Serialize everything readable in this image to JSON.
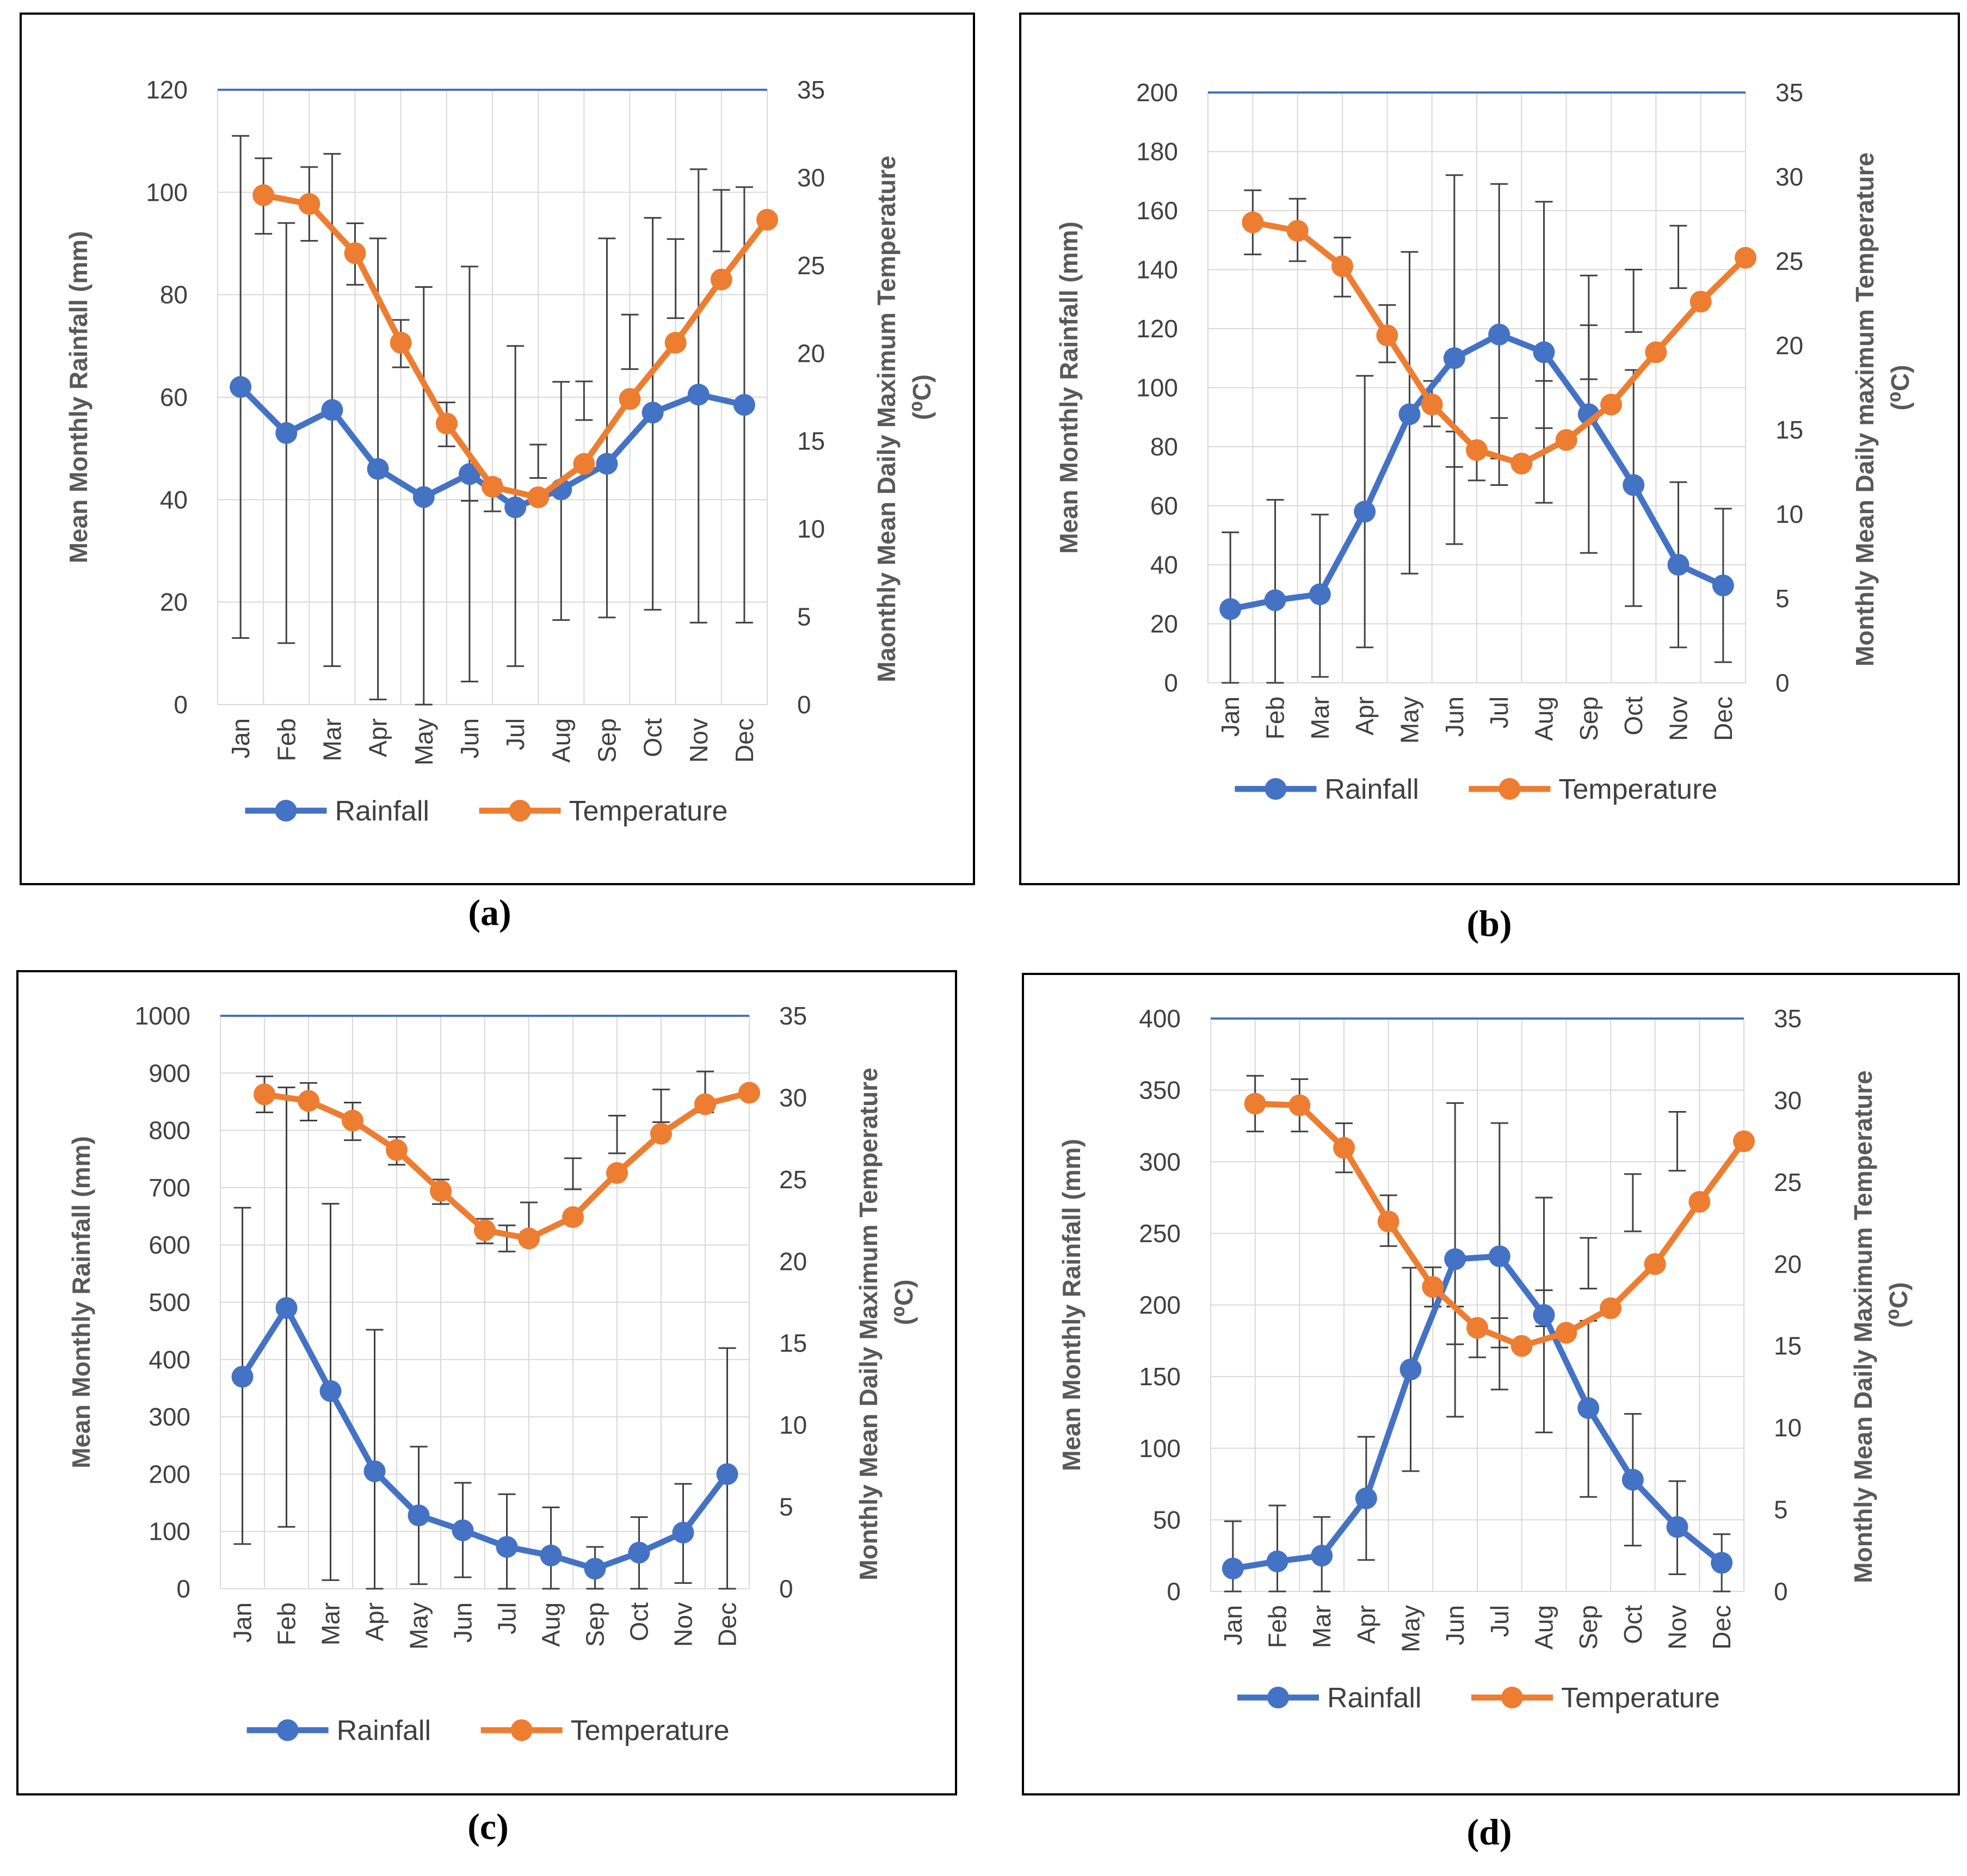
{
  "chart_data": [
    {
      "type": "line",
      "panel_label": "(a)",
      "months": [
        "Jan",
        "Feb",
        "Mar",
        "Apr",
        "May",
        "Jun",
        "Jul",
        "Aug",
        "Sep",
        "Oct",
        "Nov",
        "Dec"
      ],
      "ylabel": "Mean Monthly Rainfall (mm)",
      "y2label_line1": "Maonthly Mean Daily Maximum Temperature",
      "y2label_line2": "(⁰C)",
      "ylim": [
        0,
        120
      ],
      "yticks": [
        0,
        20,
        40,
        60,
        80,
        100,
        120
      ],
      "y2lim": [
        0,
        35
      ],
      "y2ticks": [
        0,
        5,
        10,
        15,
        20,
        25,
        30,
        35
      ],
      "rainfall": {
        "name": "Rainfall",
        "color": "#4472C4",
        "values": [
          62,
          53,
          57.5,
          46,
          40.5,
          45,
          38.5,
          42,
          47,
          57,
          60.5,
          58.5
        ],
        "err_low": [
          13,
          12,
          7.5,
          1,
          0,
          4.5,
          7.5,
          16.5,
          17,
          18.5,
          16,
          16
        ],
        "err_high": [
          111,
          94,
          107.5,
          91,
          81.5,
          85.5,
          70,
          63,
          91,
          95,
          104.5,
          101
        ]
      },
      "temperature": {
        "name": "Temperature",
        "color": "#ED7D31",
        "values": [
          29,
          28.5,
          25.7,
          20.6,
          16,
          12.4,
          11.8,
          13.7,
          17.4,
          20.6,
          24.2,
          27.6
        ],
        "err_low": [
          26.8,
          26.4,
          23.9,
          19.2,
          14.7,
          11.6,
          11,
          12.9,
          16.2,
          19.1,
          22,
          25.8
        ],
        "err_high": [
          31.1,
          30.6,
          27.4,
          21.9,
          17.2,
          13.3,
          12.8,
          14.8,
          18.4,
          22.2,
          26.5,
          29.3
        ],
        "error_bar_positions": [
          0,
          1,
          2,
          3,
          4,
          4.5,
          5,
          6,
          7,
          8,
          9,
          10
        ]
      },
      "legend": [
        "Rainfall",
        "Temperature"
      ]
    },
    {
      "type": "line",
      "panel_label": "(b)",
      "months": [
        "Jan",
        "Feb",
        "Mar",
        "Apr",
        "May",
        "Jun",
        "Jul",
        "Aug",
        "Sep",
        "Oct",
        "Nov",
        "Dec"
      ],
      "ylabel": "Mean Monthly Rainfall (mm)",
      "y2label_line1": "Monthly Mean Daily maximum Temperature",
      "y2label_line2": "(⁰C)",
      "ylim": [
        0,
        200
      ],
      "yticks": [
        0,
        20,
        40,
        60,
        80,
        100,
        120,
        140,
        160,
        180,
        200
      ],
      "y2lim": [
        0,
        35
      ],
      "y2ticks": [
        0,
        5,
        10,
        15,
        20,
        25,
        30,
        35
      ],
      "rainfall": {
        "name": "Rainfall",
        "color": "#4472C4",
        "values": [
          25,
          28,
          30,
          58,
          91,
          110,
          118,
          112,
          91,
          67,
          40,
          33
        ],
        "err_low": [
          0,
          0,
          2,
          12,
          37,
          47,
          67,
          61,
          44,
          26,
          12,
          7
        ],
        "err_high": [
          51,
          62,
          57,
          104,
          146,
          172,
          169,
          163,
          138,
          106,
          68,
          59
        ]
      },
      "temperature": {
        "name": "Temperature",
        "color": "#ED7D31",
        "values": [
          27.3,
          26.8,
          24.7,
          20.6,
          16.5,
          13.8,
          13,
          14.4,
          16.5,
          19.6,
          22.6,
          25.2
        ],
        "err_low": [
          25.4,
          25,
          22.9,
          19,
          15.2,
          12.8,
          12,
          13.3,
          15.1,
          18,
          20.8,
          23.4
        ],
        "err_high": [
          29.2,
          28.7,
          26.4,
          22.4,
          17.9,
          14.9,
          13.9,
          15.7,
          17.9,
          21.2,
          24.5,
          27.1
        ],
        "error_bar_positions": [
          0,
          1,
          2,
          3,
          4,
          4.5,
          5,
          5.5,
          6.5,
          7.5,
          8.5,
          9.5
        ]
      },
      "legend": [
        "Rainfall",
        "Temperature"
      ]
    },
    {
      "type": "line",
      "panel_label": "(c)",
      "months": [
        "Jan",
        "Feb",
        "Mar",
        "Apr",
        "May",
        "Jun",
        "Jul",
        "Aug",
        "Sep",
        "Oct",
        "Nov",
        "Dec"
      ],
      "ylabel": "Mean Monthly Rainfall (mm)",
      "y2label_line1": "Monthly Mean Daily Maximum Temperature",
      "y2label_line2": "(⁰C)",
      "ylim": [
        0,
        1000
      ],
      "yticks": [
        0,
        100,
        200,
        300,
        400,
        500,
        600,
        700,
        800,
        900,
        1000
      ],
      "y2lim": [
        0,
        35
      ],
      "y2ticks": [
        0,
        5,
        10,
        15,
        20,
        25,
        30,
        35
      ],
      "rainfall": {
        "name": "Rainfall",
        "color": "#4472C4",
        "values": [
          370,
          490,
          345,
          205,
          128,
          102,
          73,
          58,
          35,
          63,
          98,
          200
        ],
        "err_low": [
          78,
          108,
          15,
          0,
          8,
          20,
          0,
          0,
          0,
          0,
          10,
          0
        ],
        "err_high": [
          665,
          875,
          672,
          452,
          248,
          185,
          165,
          142,
          73,
          125,
          183,
          420
        ]
      },
      "temperature": {
        "name": "Temperature",
        "color": "#ED7D31",
        "values": [
          30.2,
          29.8,
          28.6,
          26.8,
          24.3,
          21.9,
          21.4,
          22.7,
          25.4,
          27.8,
          29.6,
          30.3
        ],
        "err_low": [
          29.1,
          28.6,
          27.4,
          25.9,
          23.5,
          21.1,
          20.6,
          21.8,
          24.4,
          26.6,
          28.5,
          29.1
        ],
        "err_high": [
          31.3,
          30.9,
          29.7,
          27.6,
          25,
          22.6,
          22.2,
          23.6,
          26.3,
          28.9,
          30.5,
          31.6
        ],
        "error_bar_positions": [
          0,
          1,
          2,
          3,
          4,
          5,
          5.5,
          6,
          7,
          8,
          9,
          10
        ]
      },
      "legend": [
        "Rainfall",
        "Temperature"
      ]
    },
    {
      "type": "line",
      "panel_label": "(d)",
      "months": [
        "Jan",
        "Feb",
        "Mar",
        "Apr",
        "May",
        "Jun",
        "Jul",
        "Aug",
        "Sep",
        "Oct",
        "Nov",
        "Dec"
      ],
      "ylabel": "Mean Monthly Rainfall (mm)",
      "y2label_line1": "Monthly Mean Daily Maximum  Temperature",
      "y2label_line2": "(⁰C)",
      "ylim": [
        0,
        400
      ],
      "yticks": [
        0,
        50,
        100,
        150,
        200,
        250,
        300,
        350,
        400
      ],
      "y2lim": [
        0,
        35
      ],
      "y2ticks": [
        0,
        5,
        10,
        15,
        20,
        25,
        30,
        35
      ],
      "rainfall": {
        "name": "Rainfall",
        "color": "#4472C4",
        "values": [
          16,
          21,
          25,
          65,
          155,
          232,
          234,
          193,
          128,
          78,
          45,
          20
        ],
        "err_low": [
          0,
          0,
          0,
          22,
          84,
          122,
          141,
          111,
          66,
          32,
          12,
          0
        ],
        "err_high": [
          49,
          60,
          52,
          108,
          226,
          341,
          327,
          275,
          189,
          124,
          77,
          40
        ]
      },
      "temperature": {
        "name": "Temperature",
        "color": "#ED7D31",
        "values": [
          29.8,
          29.7,
          27.1,
          22.6,
          18.6,
          16.1,
          15,
          15.8,
          17.3,
          20,
          23.8,
          27.5
        ],
        "err_low": [
          28.1,
          28.1,
          25.6,
          21.1,
          17.4,
          15.1,
          14.3,
          14.9,
          16.2,
          18.5,
          22,
          25.7
        ],
        "err_high": [
          31.5,
          31.3,
          28.6,
          24.2,
          19.8,
          17.4,
          15.9,
          16.7,
          18.4,
          21.6,
          25.5,
          29.3
        ],
        "error_bar_positions": [
          0,
          1,
          2,
          3,
          4,
          4.5,
          5,
          5.5,
          6.5,
          7.5,
          8.5,
          9.5
        ]
      },
      "legend": [
        "Rainfall",
        "Temperature"
      ]
    }
  ]
}
